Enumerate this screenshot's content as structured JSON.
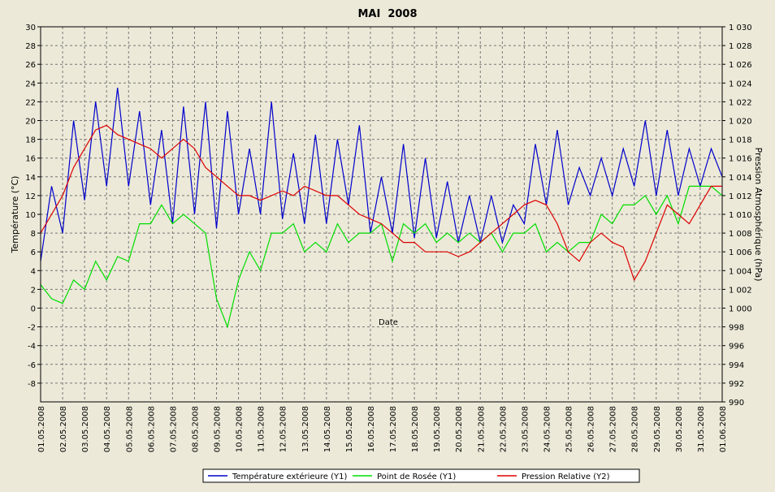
{
  "chart_data": {
    "type": "line",
    "title": "MAI  2008",
    "xlabel": "Date",
    "ylabel": "Température (°C)",
    "y2label": "Pression Atmosphérique (hPa)",
    "x": [
      0,
      0.5,
      1,
      1.5,
      2,
      2.5,
      3,
      3.5,
      4,
      4.5,
      5,
      5.5,
      6,
      6.5,
      7,
      7.5,
      8,
      8.5,
      9,
      9.5,
      10,
      10.5,
      11,
      11.5,
      12,
      12.5,
      13,
      13.5,
      14,
      14.5,
      15,
      15.5,
      16,
      16.5,
      17,
      17.5,
      18,
      18.5,
      19,
      19.5,
      20,
      20.5,
      21,
      21.5,
      22,
      22.5,
      23,
      23.5,
      24,
      24.5,
      25,
      25.5,
      26,
      26.5,
      27,
      27.5,
      28,
      28.5,
      29,
      29.5,
      30,
      30.5,
      31
    ],
    "series": [
      {
        "name": "Température extérieure (Y1)",
        "color": "#0000cc",
        "values": [
          5,
          13,
          8,
          20,
          11.5,
          22,
          13,
          23.5,
          13,
          21,
          11,
          19,
          9,
          21.5,
          10,
          22,
          8.5,
          21,
          10,
          17,
          10,
          22,
          9.5,
          16.5,
          9,
          18.5,
          9,
          18,
          11,
          19.5,
          8,
          14,
          8,
          17.5,
          7.5,
          16,
          7.5,
          13.5,
          7,
          12,
          7,
          12,
          7,
          11,
          9,
          17.5,
          11,
          19,
          11,
          15,
          12,
          16,
          12,
          17,
          13,
          20,
          12,
          19,
          12,
          17,
          13,
          17,
          14
        ]
      },
      {
        "name": "Point de Rosée (Y1)",
        "color": "#00dd00",
        "values": [
          2.5,
          1,
          0.5,
          3,
          2,
          5,
          3,
          5.5,
          5,
          9,
          9,
          11,
          9,
          10,
          9,
          8,
          1,
          -2,
          3,
          6,
          4,
          8,
          8,
          9,
          6,
          7,
          6,
          9,
          7,
          8,
          8,
          9,
          5,
          9,
          8,
          9,
          7,
          8,
          7,
          8,
          7,
          8,
          6,
          8,
          8,
          9,
          6,
          7,
          6,
          7,
          7,
          10,
          9,
          11,
          11,
          12,
          10,
          12,
          9,
          13,
          13,
          13,
          12
        ]
      },
      {
        "name": "Pression Relative (Y2)",
        "color": "#dd0000",
        "axis": "y2",
        "values": [
          1008,
          1010,
          1012,
          1015,
          1017,
          1019,
          1019.5,
          1018.5,
          1018,
          1017.5,
          1017,
          1016,
          1017,
          1018,
          1017,
          1015,
          1014,
          1013,
          1012,
          1012,
          1011.5,
          1012,
          1012.5,
          1012,
          1013,
          1012.5,
          1012,
          1012,
          1011,
          1010,
          1009.5,
          1009,
          1008,
          1007,
          1007,
          1006,
          1006,
          1006,
          1005.5,
          1006,
          1007,
          1008,
          1009,
          1010,
          1011,
          1011.5,
          1011,
          1009,
          1006,
          1005,
          1007,
          1008,
          1007,
          1006.5,
          1003,
          1005,
          1008,
          1011,
          1010,
          1009,
          1011,
          1013,
          1013
        ]
      }
    ],
    "xlim": [
      0,
      31
    ],
    "xticks": [
      {
        "value": 0,
        "label": "01.05.2008"
      },
      {
        "value": 1,
        "label": "02.05.2008"
      },
      {
        "value": 2,
        "label": "03.05.2008"
      },
      {
        "value": 3,
        "label": "04.05.2008"
      },
      {
        "value": 4,
        "label": "05.05.2008"
      },
      {
        "value": 5,
        "label": "06.05.2008"
      },
      {
        "value": 6,
        "label": "07.05.2008"
      },
      {
        "value": 7,
        "label": "08.05.2008"
      },
      {
        "value": 8,
        "label": "09.05.2008"
      },
      {
        "value": 9,
        "label": "10.05.2008"
      },
      {
        "value": 10,
        "label": "11.05.2008"
      },
      {
        "value": 11,
        "label": "12.05.2008"
      },
      {
        "value": 12,
        "label": "13.05.2008"
      },
      {
        "value": 13,
        "label": "14.05.2008"
      },
      {
        "value": 14,
        "label": "15.05.2008"
      },
      {
        "value": 15,
        "label": "16.05.2008"
      },
      {
        "value": 16,
        "label": "17.05.2008"
      },
      {
        "value": 17,
        "label": "18.05.2008"
      },
      {
        "value": 18,
        "label": "19.05.2008"
      },
      {
        "value": 19,
        "label": "20.05.2008"
      },
      {
        "value": 20,
        "label": "21.05.2008"
      },
      {
        "value": 21,
        "label": "22.05.2008"
      },
      {
        "value": 22,
        "label": "23.05.2008"
      },
      {
        "value": 23,
        "label": "24.05.2008"
      },
      {
        "value": 24,
        "label": "25.05.2008"
      },
      {
        "value": 25,
        "label": "26.05.2008"
      },
      {
        "value": 26,
        "label": "27.05.2008"
      },
      {
        "value": 27,
        "label": "28.05.2008"
      },
      {
        "value": 28,
        "label": "29.05.2008"
      },
      {
        "value": 29,
        "label": "30.05.2008"
      },
      {
        "value": 30,
        "label": "31.05.2008"
      },
      {
        "value": 31,
        "label": "01.06.2008"
      }
    ],
    "ylim": [
      -10,
      30
    ],
    "yticks": [
      -8,
      -6,
      -4,
      -2,
      0,
      2,
      4,
      6,
      8,
      10,
      12,
      14,
      16,
      18,
      20,
      22,
      24,
      26,
      28,
      30
    ],
    "y2lim": [
      990,
      1030
    ],
    "y2ticks": [
      990,
      992,
      994,
      996,
      998,
      {
        "value": 1000,
        "label": "1 000"
      },
      {
        "value": 1002,
        "label": "1 002"
      },
      {
        "value": 1004,
        "label": "1 004"
      },
      {
        "value": 1006,
        "label": "1 006"
      },
      {
        "value": 1008,
        "label": "1 008"
      },
      {
        "value": 1010,
        "label": "1 010"
      },
      {
        "value": 1012,
        "label": "1 012"
      },
      {
        "value": 1014,
        "label": "1 014"
      },
      {
        "value": 1016,
        "label": "1 016"
      },
      {
        "value": 1018,
        "label": "1 018"
      },
      {
        "value": 1020,
        "label": "1 020"
      },
      {
        "value": 1022,
        "label": "1 022"
      },
      {
        "value": 1024,
        "label": "1 024"
      },
      {
        "value": 1026,
        "label": "1 026"
      },
      {
        "value": 1028,
        "label": "1 028"
      },
      {
        "value": 1030,
        "label": "1 030"
      }
    ],
    "grid": true
  }
}
